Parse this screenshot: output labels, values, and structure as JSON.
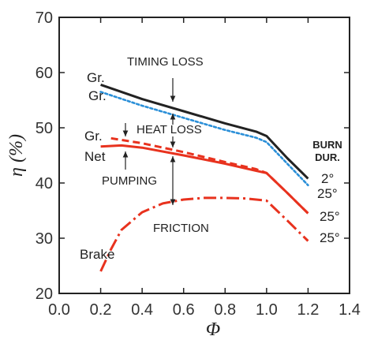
{
  "chart_data": {
    "type": "line",
    "xlabel": "Φ",
    "ylabel": "η (%)",
    "xlim": [
      0.0,
      1.4
    ],
    "ylim": [
      20,
      70
    ],
    "xticks": [
      "0.0",
      "0.2",
      "0.4",
      "0.6",
      "0.8",
      "1.0",
      "1.2",
      "1.4"
    ],
    "yticks": [
      "20",
      "30",
      "40",
      "50",
      "60",
      "70"
    ],
    "grid": false,
    "series": [
      {
        "color": "#222222",
        "dash": "solid",
        "x": [
          0.2,
          0.4,
          0.6,
          0.8,
          0.95,
          1.0,
          1.1,
          1.2
        ],
        "y": [
          57.8,
          55.2,
          53.0,
          50.8,
          49.3,
          48.5,
          44.5,
          40.8
        ]
      },
      {
        "color": "#2a8fd8",
        "dash": "dotted",
        "x": [
          0.2,
          0.4,
          0.6,
          0.8,
          0.95,
          1.0,
          1.1,
          1.2
        ],
        "y": [
          56.5,
          54.0,
          51.8,
          49.6,
          48.2,
          47.4,
          43.5,
          39.6
        ]
      },
      {
        "color": "#e8321e",
        "dash": "dashed",
        "x": [
          0.25,
          0.4,
          0.6,
          0.8,
          0.95,
          1.0,
          1.1,
          1.2
        ],
        "y": [
          48.1,
          47.2,
          45.6,
          43.8,
          42.5,
          41.8,
          38.2,
          34.5
        ]
      },
      {
        "color": "#e8321e",
        "dash": "solid",
        "x": [
          0.2,
          0.3,
          0.4,
          0.6,
          0.8,
          0.95,
          1.0,
          1.1,
          1.2
        ],
        "y": [
          46.6,
          46.8,
          46.4,
          45.0,
          43.5,
          42.2,
          41.8,
          38.2,
          34.5
        ]
      },
      {
        "color": "#e8321e",
        "dash": "dashdot",
        "x": [
          0.2,
          0.25,
          0.3,
          0.4,
          0.5,
          0.6,
          0.7,
          0.8,
          0.9,
          1.0,
          1.1,
          1.2
        ],
        "y": [
          24.0,
          28.0,
          31.5,
          34.7,
          36.3,
          37.0,
          37.3,
          37.3,
          37.2,
          36.8,
          33.2,
          29.5
        ]
      }
    ],
    "series_labels": [
      "Gr.",
      "Gr.",
      "Gr.",
      "Net",
      "Brake"
    ],
    "annotations": [
      "TIMING LOSS",
      "HEAT LOSS",
      "PUMPING",
      "FRICTION"
    ],
    "burn_duration": {
      "title_line1": "BURN",
      "title_line2": "DUR.",
      "labels": [
        "2°",
        "25°",
        "25°",
        "25°"
      ]
    }
  }
}
